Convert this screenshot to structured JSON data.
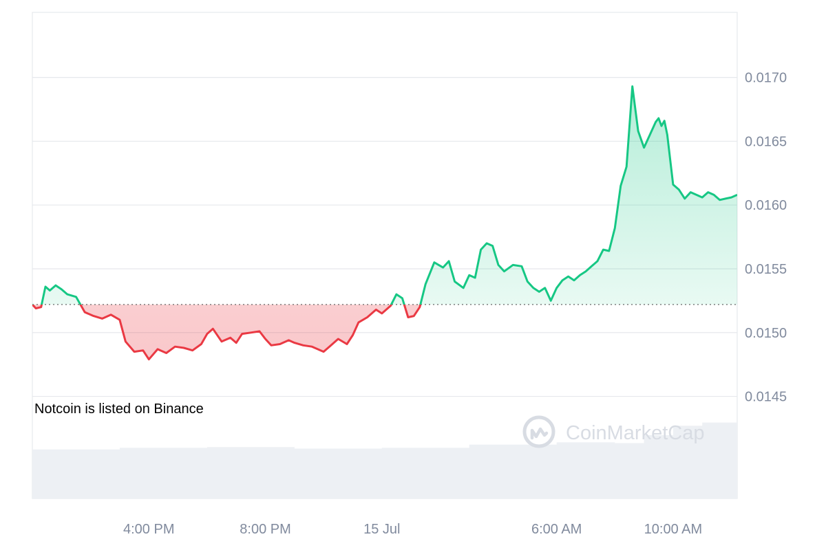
{
  "chart_data": {
    "type": "area",
    "title": "",
    "xlabel": "",
    "ylabel": "",
    "baseline": 0.01522,
    "ylim": [
      0.0145,
      0.0175
    ],
    "y_ticks": [
      {
        "value": 0.0145,
        "label": "0.0145"
      },
      {
        "value": 0.015,
        "label": "0.0150"
      },
      {
        "value": 0.0155,
        "label": "0.0155"
      },
      {
        "value": 0.016,
        "label": "0.0160"
      },
      {
        "value": 0.0165,
        "label": "0.0165"
      },
      {
        "value": 0.017,
        "label": "0.0170"
      }
    ],
    "x_range_hours": [
      0,
      24.2
    ],
    "x_ticks": [
      {
        "hour": 4,
        "label": "4:00 PM"
      },
      {
        "hour": 8,
        "label": "8:00 PM"
      },
      {
        "hour": 12,
        "label": "15 Jul"
      },
      {
        "hour": 18,
        "label": "6:00 AM"
      },
      {
        "hour": 22,
        "label": "10:00 AM"
      }
    ],
    "series": [
      {
        "values": [
          [
            0.0,
            0.01522
          ],
          [
            0.12,
            0.01519
          ],
          [
            0.3,
            0.0152
          ],
          [
            0.45,
            0.01536
          ],
          [
            0.6,
            0.01533
          ],
          [
            0.8,
            0.01537
          ],
          [
            1.0,
            0.01534
          ],
          [
            1.2,
            0.0153
          ],
          [
            1.5,
            0.01528
          ],
          [
            1.8,
            0.01516
          ],
          [
            2.1,
            0.01513
          ],
          [
            2.4,
            0.01511
          ],
          [
            2.7,
            0.01514
          ],
          [
            3.0,
            0.0151
          ],
          [
            3.2,
            0.01493
          ],
          [
            3.5,
            0.01485
          ],
          [
            3.8,
            0.01486
          ],
          [
            4.0,
            0.01479
          ],
          [
            4.3,
            0.01487
          ],
          [
            4.6,
            0.01484
          ],
          [
            4.9,
            0.01489
          ],
          [
            5.2,
            0.01488
          ],
          [
            5.5,
            0.01486
          ],
          [
            5.8,
            0.01491
          ],
          [
            6.0,
            0.01499
          ],
          [
            6.2,
            0.01503
          ],
          [
            6.5,
            0.01493
          ],
          [
            6.8,
            0.01496
          ],
          [
            7.0,
            0.01492
          ],
          [
            7.2,
            0.01499
          ],
          [
            7.5,
            0.015
          ],
          [
            7.8,
            0.01501
          ],
          [
            8.0,
            0.01495
          ],
          [
            8.2,
            0.0149
          ],
          [
            8.5,
            0.01491
          ],
          [
            8.8,
            0.01494
          ],
          [
            9.0,
            0.01492
          ],
          [
            9.3,
            0.0149
          ],
          [
            9.6,
            0.01489
          ],
          [
            10.0,
            0.01485
          ],
          [
            10.2,
            0.01489
          ],
          [
            10.5,
            0.01495
          ],
          [
            10.8,
            0.01491
          ],
          [
            11.0,
            0.01498
          ],
          [
            11.2,
            0.01508
          ],
          [
            11.5,
            0.01512
          ],
          [
            11.8,
            0.01518
          ],
          [
            12.0,
            0.01515
          ],
          [
            12.3,
            0.01521
          ],
          [
            12.5,
            0.0153
          ],
          [
            12.7,
            0.01527
          ],
          [
            12.9,
            0.01512
          ],
          [
            13.1,
            0.01513
          ],
          [
            13.3,
            0.0152
          ],
          [
            13.5,
            0.01538
          ],
          [
            13.8,
            0.01555
          ],
          [
            14.1,
            0.01551
          ],
          [
            14.3,
            0.01556
          ],
          [
            14.5,
            0.0154
          ],
          [
            14.8,
            0.01535
          ],
          [
            15.0,
            0.01545
          ],
          [
            15.2,
            0.01543
          ],
          [
            15.4,
            0.01565
          ],
          [
            15.6,
            0.0157
          ],
          [
            15.8,
            0.01568
          ],
          [
            16.0,
            0.01553
          ],
          [
            16.2,
            0.01548
          ],
          [
            16.5,
            0.01553
          ],
          [
            16.8,
            0.01552
          ],
          [
            17.0,
            0.0154
          ],
          [
            17.2,
            0.01535
          ],
          [
            17.4,
            0.01532
          ],
          [
            17.6,
            0.01535
          ],
          [
            17.8,
            0.01525
          ],
          [
            18.0,
            0.01535
          ],
          [
            18.2,
            0.01541
          ],
          [
            18.4,
            0.01544
          ],
          [
            18.6,
            0.01541
          ],
          [
            18.8,
            0.01545
          ],
          [
            19.0,
            0.01548
          ],
          [
            19.2,
            0.01552
          ],
          [
            19.4,
            0.01556
          ],
          [
            19.6,
            0.01565
          ],
          [
            19.8,
            0.01564
          ],
          [
            20.0,
            0.01582
          ],
          [
            20.2,
            0.01615
          ],
          [
            20.4,
            0.0163
          ],
          [
            20.6,
            0.01693
          ],
          [
            20.8,
            0.01658
          ],
          [
            21.0,
            0.01645
          ],
          [
            21.2,
            0.01655
          ],
          [
            21.4,
            0.01665
          ],
          [
            21.5,
            0.01668
          ],
          [
            21.6,
            0.01662
          ],
          [
            21.7,
            0.01666
          ],
          [
            21.8,
            0.01655
          ],
          [
            22.0,
            0.01616
          ],
          [
            22.2,
            0.01612
          ],
          [
            22.4,
            0.01605
          ],
          [
            22.6,
            0.0161
          ],
          [
            22.8,
            0.01608
          ],
          [
            23.0,
            0.01606
          ],
          [
            23.2,
            0.0161
          ],
          [
            23.4,
            0.01608
          ],
          [
            23.6,
            0.01604
          ],
          [
            23.8,
            0.01605
          ],
          [
            24.0,
            0.01606
          ],
          [
            24.2,
            0.01608
          ]
        ]
      }
    ],
    "volume": {
      "values": [
        [
          0,
          62
        ],
        [
          3,
          64
        ],
        [
          6,
          65
        ],
        [
          9,
          63
        ],
        [
          12,
          64
        ],
        [
          15,
          68
        ],
        [
          18,
          71
        ],
        [
          20,
          70
        ],
        [
          21,
          80
        ],
        [
          22,
          92
        ],
        [
          23,
          96
        ],
        [
          24.2,
          98
        ]
      ]
    },
    "colors": {
      "up_line": "#16c784",
      "down_line": "#ea3943",
      "up_fill": "#16c784",
      "down_fill": "#ea3943",
      "grid": "#e6e8ec",
      "baseline": "#555555",
      "volume": "#edf0f4",
      "tick_text": "#808a9d"
    },
    "annotations": [
      {
        "text": "Notcoin is listed on Binance"
      }
    ],
    "watermark": "CoinMarketCap",
    "grid": true,
    "legend": "none"
  }
}
